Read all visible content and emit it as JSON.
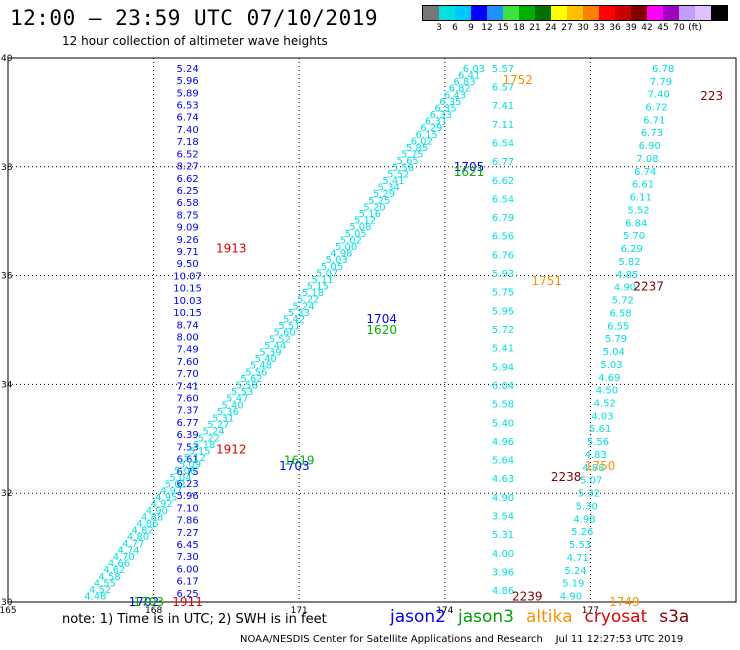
{
  "header": {
    "title": "12:00 – 23:59 UTC 07/10/2019",
    "subtitle": "12 hour collection of altimeter wave heights"
  },
  "colorbar": {
    "colors": [
      "#777777",
      "#00e0e0",
      "#00c8ff",
      "#0000ff",
      "#1e90ff",
      "#40e040",
      "#00b000",
      "#007000",
      "#ffff00",
      "#ffc000",
      "#ff8000",
      "#ff0000",
      "#c80000",
      "#800000",
      "#ff00ff",
      "#a000c0",
      "#c0a0ff",
      "#e0c0ff",
      "#000000"
    ],
    "labels": [
      "3",
      "6",
      "9",
      "12",
      "15",
      "18",
      "21",
      "24",
      "27",
      "30",
      "33",
      "36",
      "39",
      "42",
      "45",
      "70",
      "(ft)"
    ]
  },
  "map": {
    "x_ticks": [
      "165",
      "168",
      "171",
      "174",
      "177"
    ],
    "y_ticks": [
      "30",
      "32",
      "34",
      "36",
      "38",
      "40"
    ]
  },
  "chart_data": {
    "type": "scatter",
    "x_range": [
      165,
      180
    ],
    "y_range": [
      30,
      40
    ],
    "grid": true,
    "tracks": [
      {
        "satellite": "jason2",
        "color": "#0000ff",
        "lon_start": 168.7,
        "lon_end": 168.7,
        "lat_start": 39.8,
        "lat_end": 30.15,
        "values": [
          "5.24",
          "5.96",
          "5.89",
          "6.53",
          "6.74",
          "7.40",
          "7.18",
          "6.52",
          "8.27",
          "6.62",
          "6.25",
          "6.58",
          "8.75",
          "9.09",
          "9.26",
          "9.71",
          "9.50",
          "10.07",
          "10.15",
          "10.03",
          "10.15",
          "8.74",
          "8.00",
          "7.49",
          "7.60",
          "7.70",
          "7.41",
          "7.60",
          "7.37",
          "6.77",
          "6.39",
          "7.53",
          "6.61",
          "6.75",
          "6.23",
          "5.96",
          "7.10",
          "7.86",
          "7.27",
          "6.45",
          "7.30",
          "6.00",
          "6.17",
          "6.25"
        ]
      },
      {
        "satellite": "jason3",
        "color": "#00e0e0",
        "lon_start": 174.6,
        "lon_end": 166.8,
        "lat_start": 39.8,
        "lat_end": 30.1,
        "values": [
          "6.03",
          "6.41",
          "6.83",
          "6.82",
          "6.43",
          "6.35",
          "6.35",
          "6.33",
          "6.31",
          "6.29",
          "6.15",
          "6.02",
          "5.85",
          "5.75",
          "5.65",
          "5.58",
          "5.52",
          "5.41",
          "5.34",
          "5.29",
          "5.25",
          "5.20",
          "5.16",
          "5.12",
          "5.08",
          "5.05",
          "5.02",
          "5.00",
          "4.98",
          "5.03",
          "5.05",
          "5.07",
          "5.11",
          "5.15",
          "5.18",
          "5.22",
          "5.24",
          "5.33",
          "5.42",
          "5.51",
          "5.60",
          "5.52",
          "5.44",
          "5.39",
          "5.40",
          "5.48",
          "5.56",
          "5.62",
          "5.58",
          "5.53",
          "5.47",
          "5.40",
          "5.36",
          "5.31",
          "5.27",
          "5.24",
          "5.22",
          "5.18",
          "5.15",
          "5.12",
          "5.09",
          "5.06",
          "5.04",
          "5.01",
          "4.97",
          "4.95",
          "4.92",
          "4.90",
          "4.88",
          "4.86",
          "4.82",
          "4.80",
          "4.77",
          "4.74",
          "4.70",
          "4.66",
          "4.62",
          "4.58",
          "4.55",
          "4.52",
          "4.48"
        ]
      },
      {
        "satellite": "jason3",
        "color": "#00e0e0",
        "lon_start": 175.2,
        "lon_end": 175.2,
        "lat_start": 39.8,
        "lat_end": 30.2,
        "values": [
          "5.57",
          "6.57",
          "7.41",
          "7.11",
          "6.54",
          "6.77",
          "6.62",
          "6.54",
          "6.79",
          "6.56",
          "6.76",
          "5.93",
          "5.75",
          "5.95",
          "5.72",
          "5.41",
          "5.94",
          "6.04",
          "5.58",
          "5.40",
          "4.96",
          "5.64",
          "4.63",
          "4.90",
          "3.54",
          "5.31",
          "4.00",
          "3.96",
          "4.86"
        ]
      },
      {
        "satellite": "jason3",
        "color": "#00e0e0",
        "lon_start": 178.5,
        "lon_end": 176.6,
        "lat_start": 39.8,
        "lat_end": 30.1,
        "values": [
          "6.78",
          "7.79",
          "7.40",
          "6.72",
          "6.71",
          "6.73",
          "6.90",
          "7.08",
          "6.74",
          "6.61",
          "6.11",
          "5.52",
          "6.84",
          "5.70",
          "6.29",
          "5.82",
          "4.85",
          "4.90",
          "5.72",
          "6.58",
          "6.55",
          "5.79",
          "5.04",
          "5.03",
          "4.69",
          "4.50",
          "4.52",
          "4.03",
          "5.61",
          "5.56",
          "4.83",
          "4.88",
          "5.07",
          "5.32",
          "5.30",
          "4.98",
          "5.26",
          "5.53",
          "4.71",
          "5.24",
          "5.19",
          "4.90"
        ]
      }
    ],
    "pass_labels": [
      {
        "text": "1913",
        "color": "#e00000",
        "lon": 169.6,
        "lat": 36.5
      },
      {
        "text": "1912",
        "color": "#e00000",
        "lon": 169.6,
        "lat": 32.8
      },
      {
        "text": "1911",
        "color": "#e00000",
        "lon": 168.7,
        "lat": 30.0
      },
      {
        "text": "1702",
        "color": "#0000ff",
        "lon": 167.8,
        "lat": 30.0
      },
      {
        "text": "1703",
        "color": "#00b000",
        "lon": 167.9,
        "lat": 30.0
      },
      {
        "text": "1703",
        "color": "#0000ff",
        "lon": 170.9,
        "lat": 32.5
      },
      {
        "text": "1619",
        "color": "#00b000",
        "lon": 171.0,
        "lat": 32.6
      },
      {
        "text": "1704",
        "color": "#0000ff",
        "lon": 172.7,
        "lat": 35.2
      },
      {
        "text": "1620",
        "color": "#00b000",
        "lon": 172.7,
        "lat": 35.0
      },
      {
        "text": "1705",
        "color": "#0000ff",
        "lon": 174.5,
        "lat": 38.0
      },
      {
        "text": "1621",
        "color": "#00b000",
        "lon": 174.5,
        "lat": 37.9
      },
      {
        "text": "1752",
        "color": "#ff9000",
        "lon": 175.5,
        "lat": 39.6
      },
      {
        "text": "1751",
        "color": "#ff9000",
        "lon": 176.1,
        "lat": 35.9
      },
      {
        "text": "1750",
        "color": "#ff9000",
        "lon": 177.2,
        "lat": 32.5
      },
      {
        "text": "1749",
        "color": "#ff9000",
        "lon": 177.7,
        "lat": 30.0
      },
      {
        "text": "223",
        "color": "#800000",
        "lon": 179.5,
        "lat": 39.3
      },
      {
        "text": "2237",
        "color": "#800000",
        "lon": 178.2,
        "lat": 35.8
      },
      {
        "text": "2238",
        "color": "#800000",
        "lon": 176.5,
        "lat": 32.3
      },
      {
        "text": "2239",
        "color": "#800000",
        "lon": 175.7,
        "lat": 30.1
      }
    ]
  },
  "note": "note: 1) Time is in UTC; 2) SWH is in feet",
  "legend": [
    {
      "label": "jason2",
      "color": "#0000ff"
    },
    {
      "label": "jason3",
      "color": "#00a000"
    },
    {
      "label": "altika",
      "color": "#ff9000"
    },
    {
      "label": "cryosat",
      "color": "#e00000"
    },
    {
      "label": "s3a",
      "color": "#800000"
    }
  ],
  "footer": {
    "center": "NOAA/NESDIS Center for Satellite Applications and Research",
    "timestamp": "Jul 11 12:27:53 UTC 2019"
  }
}
